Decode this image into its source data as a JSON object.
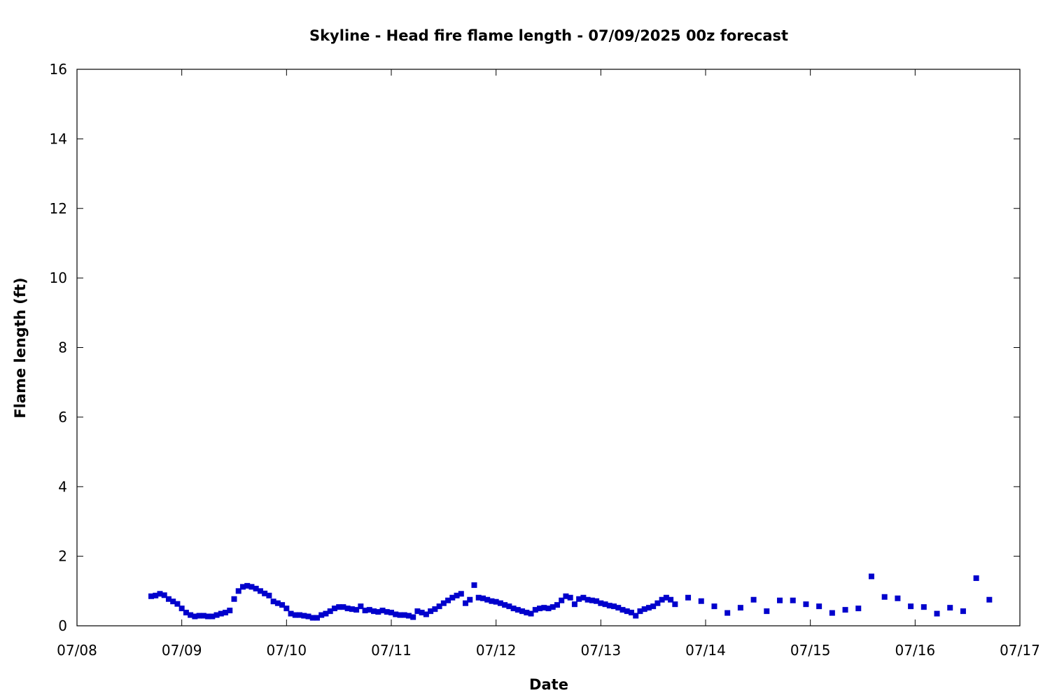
{
  "chart_data": {
    "type": "scatter",
    "title": "Skyline - Head fire flame length - 07/09/2025 00z forecast",
    "xlabel": "Date",
    "ylabel": "Flame length (ft)",
    "xlim": [
      "07/08",
      "07/17"
    ],
    "ylim": [
      0,
      16
    ],
    "xticks": [
      "07/08",
      "07/09",
      "07/10",
      "07/11",
      "07/12",
      "07/13",
      "07/14",
      "07/15",
      "07/16",
      "07/17"
    ],
    "yticks": [
      0,
      2,
      4,
      6,
      8,
      10,
      12,
      14,
      16
    ],
    "grid": false,
    "marker_color": "#0000cc",
    "series": [
      {
        "points": [
          [
            "07/08 17:00",
            0.85
          ],
          [
            "07/08 18:00",
            0.87
          ],
          [
            "07/08 19:00",
            0.92
          ],
          [
            "07/08 20:00",
            0.88
          ],
          [
            "07/08 21:00",
            0.77
          ],
          [
            "07/08 22:00",
            0.7
          ],
          [
            "07/08 23:00",
            0.63
          ],
          [
            "07/09 00:00",
            0.5
          ],
          [
            "07/09 01:00",
            0.38
          ],
          [
            "07/09 02:00",
            0.31
          ],
          [
            "07/09 03:00",
            0.27
          ],
          [
            "07/09 04:00",
            0.29
          ],
          [
            "07/09 05:00",
            0.29
          ],
          [
            "07/09 06:00",
            0.27
          ],
          [
            "07/09 07:00",
            0.27
          ],
          [
            "07/09 08:00",
            0.31
          ],
          [
            "07/09 09:00",
            0.35
          ],
          [
            "07/09 10:00",
            0.38
          ],
          [
            "07/09 11:00",
            0.44
          ],
          [
            "07/09 12:00",
            0.77
          ],
          [
            "07/09 13:00",
            1.0
          ],
          [
            "07/09 14:00",
            1.12
          ],
          [
            "07/09 15:00",
            1.15
          ],
          [
            "07/09 16:00",
            1.12
          ],
          [
            "07/09 17:00",
            1.07
          ],
          [
            "07/09 18:00",
            1.0
          ],
          [
            "07/09 19:00",
            0.93
          ],
          [
            "07/09 20:00",
            0.87
          ],
          [
            "07/09 21:00",
            0.7
          ],
          [
            "07/09 22:00",
            0.65
          ],
          [
            "07/09 23:00",
            0.6
          ],
          [
            "07/10 00:00",
            0.5
          ],
          [
            "07/10 01:00",
            0.35
          ],
          [
            "07/10 02:00",
            0.31
          ],
          [
            "07/10 03:00",
            0.31
          ],
          [
            "07/10 04:00",
            0.29
          ],
          [
            "07/10 05:00",
            0.27
          ],
          [
            "07/10 06:00",
            0.23
          ],
          [
            "07/10 07:00",
            0.23
          ],
          [
            "07/10 08:00",
            0.31
          ],
          [
            "07/10 09:00",
            0.35
          ],
          [
            "07/10 10:00",
            0.42
          ],
          [
            "07/10 11:00",
            0.5
          ],
          [
            "07/10 12:00",
            0.54
          ],
          [
            "07/10 13:00",
            0.54
          ],
          [
            "07/10 14:00",
            0.5
          ],
          [
            "07/10 15:00",
            0.48
          ],
          [
            "07/10 16:00",
            0.46
          ],
          [
            "07/10 17:00",
            0.56
          ],
          [
            "07/10 18:00",
            0.44
          ],
          [
            "07/10 19:00",
            0.46
          ],
          [
            "07/10 20:00",
            0.42
          ],
          [
            "07/10 21:00",
            0.4
          ],
          [
            "07/10 22:00",
            0.44
          ],
          [
            "07/10 23:00",
            0.4
          ],
          [
            "07/11 00:00",
            0.38
          ],
          [
            "07/11 01:00",
            0.33
          ],
          [
            "07/11 02:00",
            0.31
          ],
          [
            "07/11 03:00",
            0.31
          ],
          [
            "07/11 04:00",
            0.29
          ],
          [
            "07/11 05:00",
            0.25
          ],
          [
            "07/11 06:00",
            0.42
          ],
          [
            "07/11 07:00",
            0.38
          ],
          [
            "07/11 08:00",
            0.33
          ],
          [
            "07/11 09:00",
            0.42
          ],
          [
            "07/11 10:00",
            0.48
          ],
          [
            "07/11 11:00",
            0.56
          ],
          [
            "07/11 12:00",
            0.65
          ],
          [
            "07/11 13:00",
            0.73
          ],
          [
            "07/11 14:00",
            0.81
          ],
          [
            "07/11 15:00",
            0.87
          ],
          [
            "07/11 16:00",
            0.92
          ],
          [
            "07/11 17:00",
            0.65
          ],
          [
            "07/11 18:00",
            0.75
          ],
          [
            "07/11 19:00",
            1.17
          ],
          [
            "07/11 20:00",
            0.81
          ],
          [
            "07/11 21:00",
            0.79
          ],
          [
            "07/11 22:00",
            0.75
          ],
          [
            "07/11 23:00",
            0.71
          ],
          [
            "07/12 00:00",
            0.69
          ],
          [
            "07/12 01:00",
            0.65
          ],
          [
            "07/12 02:00",
            0.6
          ],
          [
            "07/12 03:00",
            0.56
          ],
          [
            "07/12 04:00",
            0.5
          ],
          [
            "07/12 05:00",
            0.46
          ],
          [
            "07/12 06:00",
            0.42
          ],
          [
            "07/12 07:00",
            0.38
          ],
          [
            "07/12 08:00",
            0.35
          ],
          [
            "07/12 09:00",
            0.46
          ],
          [
            "07/12 10:00",
            0.5
          ],
          [
            "07/12 11:00",
            0.52
          ],
          [
            "07/12 12:00",
            0.5
          ],
          [
            "07/12 13:00",
            0.54
          ],
          [
            "07/12 14:00",
            0.6
          ],
          [
            "07/12 15:00",
            0.73
          ],
          [
            "07/12 16:00",
            0.85
          ],
          [
            "07/12 17:00",
            0.81
          ],
          [
            "07/12 18:00",
            0.62
          ],
          [
            "07/12 19:00",
            0.77
          ],
          [
            "07/12 20:00",
            0.81
          ],
          [
            "07/12 21:00",
            0.75
          ],
          [
            "07/12 22:00",
            0.73
          ],
          [
            "07/12 23:00",
            0.71
          ],
          [
            "07/13 00:00",
            0.65
          ],
          [
            "07/13 01:00",
            0.62
          ],
          [
            "07/13 02:00",
            0.58
          ],
          [
            "07/13 03:00",
            0.56
          ],
          [
            "07/13 04:00",
            0.52
          ],
          [
            "07/13 05:00",
            0.46
          ],
          [
            "07/13 06:00",
            0.42
          ],
          [
            "07/13 07:00",
            0.38
          ],
          [
            "07/13 08:00",
            0.29
          ],
          [
            "07/13 09:00",
            0.42
          ],
          [
            "07/13 10:00",
            0.48
          ],
          [
            "07/13 11:00",
            0.52
          ],
          [
            "07/13 12:00",
            0.56
          ],
          [
            "07/13 13:00",
            0.65
          ],
          [
            "07/13 14:00",
            0.75
          ],
          [
            "07/13 15:00",
            0.81
          ],
          [
            "07/13 16:00",
            0.75
          ],
          [
            "07/13 17:00",
            0.62
          ],
          [
            "07/13 20:00",
            0.81
          ],
          [
            "07/13 23:00",
            0.71
          ],
          [
            "07/14 02:00",
            0.56
          ],
          [
            "07/14 05:00",
            0.37
          ],
          [
            "07/14 08:00",
            0.52
          ],
          [
            "07/14 11:00",
            0.75
          ],
          [
            "07/14 14:00",
            0.42
          ],
          [
            "07/14 17:00",
            0.73
          ],
          [
            "07/14 20:00",
            0.73
          ],
          [
            "07/14 23:00",
            0.62
          ],
          [
            "07/15 02:00",
            0.56
          ],
          [
            "07/15 05:00",
            0.37
          ],
          [
            "07/15 08:00",
            0.46
          ],
          [
            "07/15 11:00",
            0.5
          ],
          [
            "07/15 14:00",
            1.42
          ],
          [
            "07/15 17:00",
            0.83
          ],
          [
            "07/15 20:00",
            0.79
          ],
          [
            "07/15 23:00",
            0.56
          ],
          [
            "07/16 02:00",
            0.54
          ],
          [
            "07/16 05:00",
            0.35
          ],
          [
            "07/16 08:00",
            0.52
          ],
          [
            "07/16 11:00",
            0.42
          ],
          [
            "07/16 14:00",
            1.37
          ],
          [
            "07/16 17:00",
            0.75
          ]
        ]
      }
    ]
  }
}
